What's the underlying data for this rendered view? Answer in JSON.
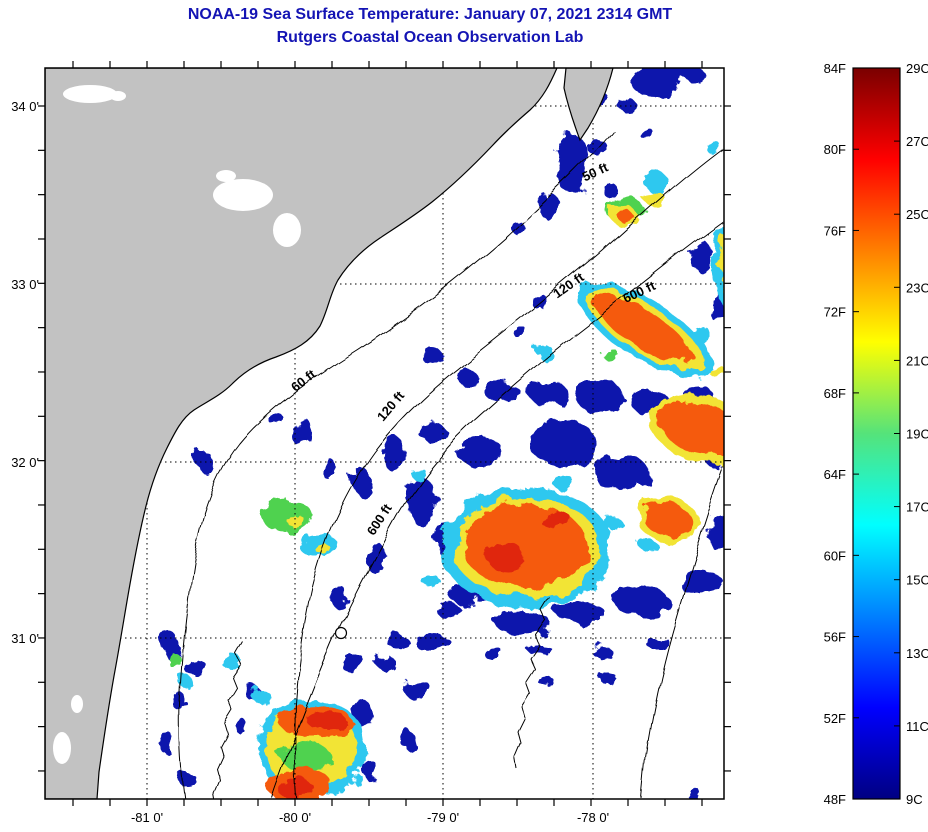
{
  "header": {
    "title_line1": "NOAA-19 Sea Surface Temperature:  January 07, 2021 2314 GMT",
    "title_line2": "Rutgers Coastal Ocean Observation Lab",
    "title_color": "#1414b4"
  },
  "map": {
    "x_tick_labels": [
      "-81 0'",
      "-80 0'",
      "-79 0'",
      "-78 0'"
    ],
    "y_tick_labels": [
      "34 0'",
      "33 0'",
      "32 0'",
      "31 0'"
    ],
    "depth_contour_labels": [
      "50 ft",
      "120 ft",
      "600 ft",
      "60 ft",
      "120 ft",
      "600 ft"
    ],
    "land_color": "#c2c2c2",
    "cloud_nodata_color": "#ffffff",
    "gridline_style": "dotted",
    "marker": "buoy-circle"
  },
  "colorbar": {
    "fahrenheit_labels": [
      "84F",
      "80F",
      "76F",
      "72F",
      "68F",
      "64F",
      "60F",
      "56F",
      "52F",
      "48F"
    ],
    "celsius_labels": [
      "29C",
      "27C",
      "25C",
      "23C",
      "21C",
      "19C",
      "17C",
      "15C",
      "13C",
      "11C",
      "9C"
    ],
    "max_f": "84F",
    "min_f": "48F",
    "max_c": "29C",
    "min_c": "9C",
    "colormap": "jet",
    "gradient_top_to_bottom": [
      "#7a0000",
      "#ff0000",
      "#ffff00",
      "#00ffff",
      "#0000ff",
      "#000082"
    ]
  }
}
